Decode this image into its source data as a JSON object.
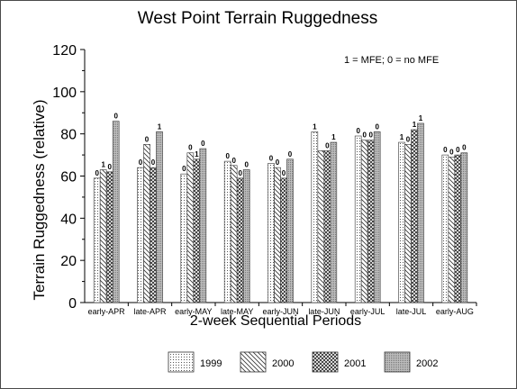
{
  "chart_data": {
    "type": "bar",
    "title": "West Point Terrain Ruggedness",
    "annotation": "1 = MFE; 0 = no MFE",
    "xlabel": "2-week Sequential Periods",
    "ylabel": "Terrain Ruggedness (relative)",
    "ylim": [
      0,
      120
    ],
    "yticks": [
      "0",
      "20",
      "40",
      "60",
      "80",
      "100",
      "120"
    ],
    "grid": false,
    "legend_position": "bottom",
    "categories": [
      "early-APR",
      "late-APR",
      "early-MAY",
      "late-MAY",
      "early-JUN",
      "late-JUN",
      "early-JUL",
      "late-JUL",
      "early-AUG"
    ],
    "series": [
      {
        "name": "1999",
        "pattern": "dots",
        "values": [
          59,
          64,
          61,
          67,
          66,
          81,
          79,
          76,
          70
        ],
        "labels": [
          "0",
          "0",
          "0",
          "0",
          "0",
          "1",
          "0",
          "1",
          "0"
        ]
      },
      {
        "name": "2000",
        "pattern": "diagonal",
        "values": [
          63,
          75,
          71,
          65,
          64,
          72,
          77,
          75,
          69
        ],
        "labels": [
          "1",
          "0",
          "0",
          "0",
          "0",
          "",
          "0",
          "0",
          "0"
        ]
      },
      {
        "name": "2001",
        "pattern": "crosshatch",
        "values": [
          62,
          64,
          68,
          59,
          59,
          72,
          77,
          82,
          70
        ],
        "labels": [
          "0",
          "0",
          "1",
          "0",
          "0",
          "0",
          "0",
          "1",
          "0"
        ]
      },
      {
        "name": "2002",
        "pattern": "fine-dots",
        "values": [
          86,
          81,
          73,
          63,
          68,
          76,
          81,
          85,
          71
        ],
        "labels": [
          "0",
          "1",
          "0",
          "0",
          "0",
          "1",
          "0",
          "1",
          "0"
        ]
      }
    ]
  }
}
